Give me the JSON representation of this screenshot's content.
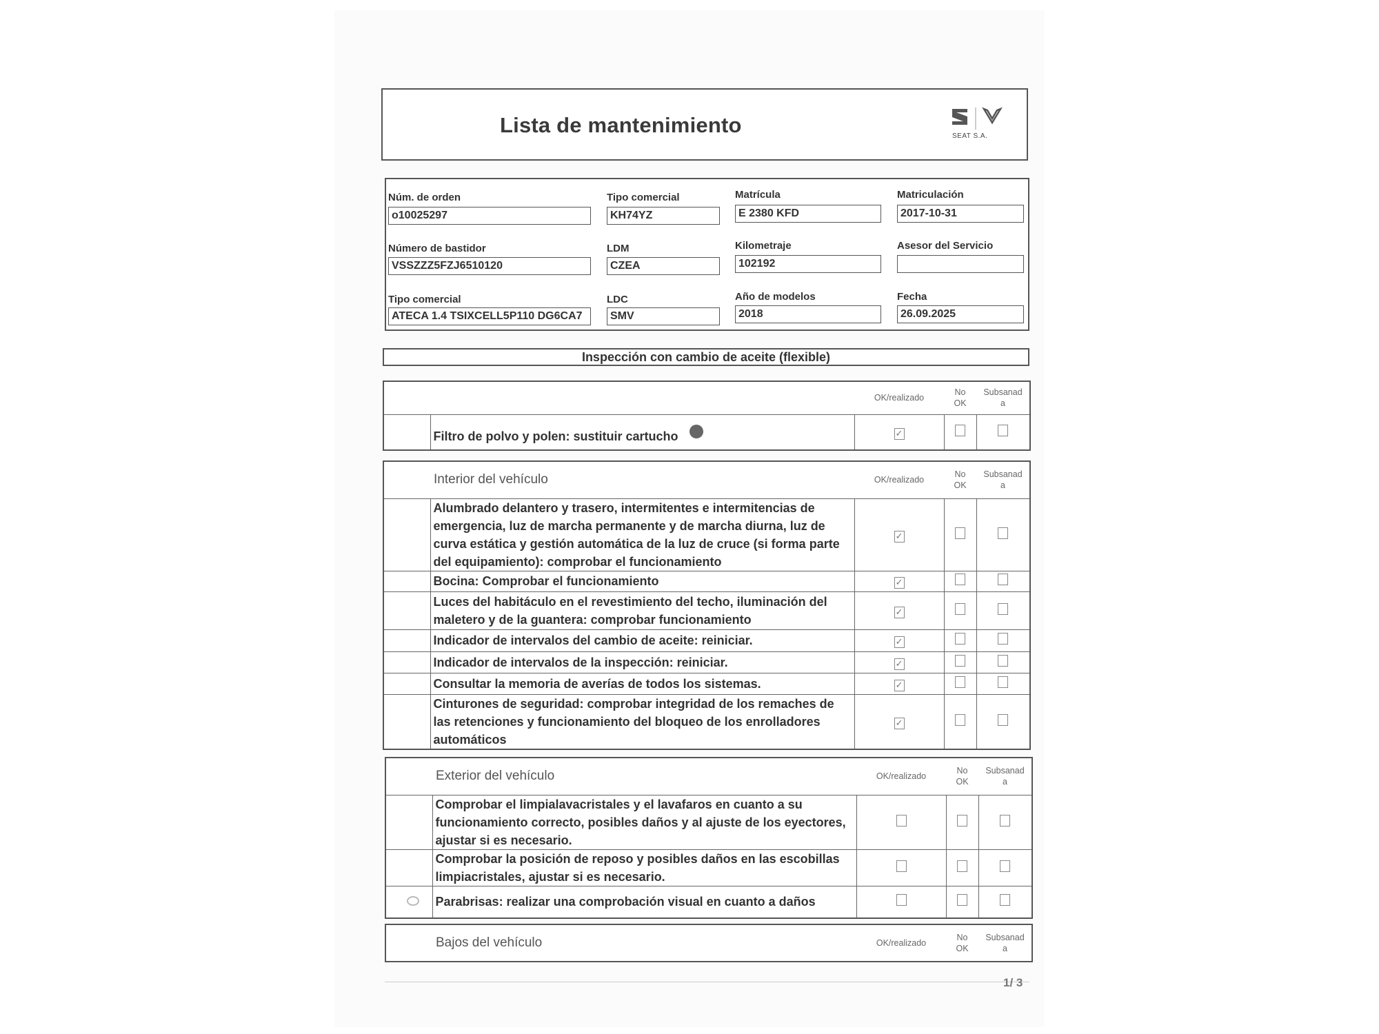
{
  "header": {
    "title": "Lista de mantenimiento",
    "brand": "SEAT S.A."
  },
  "info": [
    {
      "label": "Núm. de orden",
      "value": "o10025297"
    },
    {
      "label": "Tipo comercial",
      "value": "KH74YZ"
    },
    {
      "label": "Matrícula",
      "value": "E 2380 KFD"
    },
    {
      "label": "Matriculación",
      "value": "2017-10-31"
    },
    {
      "label": "Número de bastidor",
      "value": "VSSZZZ5FZJ6510120"
    },
    {
      "label": "LDM",
      "value": "CZEA"
    },
    {
      "label": "Kilometraje",
      "value": "102192"
    },
    {
      "label": "Asesor del Servicio",
      "value": ""
    },
    {
      "label": "Tipo comercial",
      "value": "ATECA 1.4 TSIXCELL5P110 DG6CA7"
    },
    {
      "label": "LDC",
      "value": "SMV"
    },
    {
      "label": "Año de modelos",
      "value": "2018"
    },
    {
      "label": "Fecha",
      "value": "26.09.2025"
    }
  ],
  "section_title": "Inspección con cambio de aceite (flexible)",
  "columns": {
    "ok": "OK/realizado",
    "no_ok_1": "No",
    "no_ok_2": "OK",
    "sub_1": "Subsanad",
    "sub_2": "a"
  },
  "check_mark": "✓",
  "groups": [
    {
      "title": "",
      "items": [
        {
          "text": "Filtro de polvo y polen: sustituir cartucho",
          "ok": true,
          "no_ok": false,
          "subsanada": false
        }
      ]
    },
    {
      "title": "Interior del vehículo",
      "items": [
        {
          "text": "Alumbrado delantero y trasero, intermitentes e intermitencias de emergencia, luz de marcha permanente y de marcha diurna, luz de curva estática y gestión automática de la luz de cruce (si forma parte del equipamiento): comprobar el funcionamiento",
          "ok": true,
          "no_ok": false,
          "subsanada": false
        },
        {
          "text": "Bocina: Comprobar el funcionamiento",
          "ok": true,
          "no_ok": false,
          "subsanada": false
        },
        {
          "text": "Luces del habitáculo en el revestimiento del techo, iluminación del maletero y de la guantera: comprobar funcionamiento",
          "ok": true,
          "no_ok": false,
          "subsanada": false
        },
        {
          "text": "Indicador de intervalos del cambio de aceite: reiniciar.",
          "ok": true,
          "no_ok": false,
          "subsanada": false
        },
        {
          "text": "Indicador de intervalos de la inspección: reiniciar.",
          "ok": true,
          "no_ok": false,
          "subsanada": false
        },
        {
          "text": "Consultar la memoria de averías de todos los sistemas.",
          "ok": true,
          "no_ok": false,
          "subsanada": false
        },
        {
          "text": "Cinturones de seguridad: comprobar integridad de los remaches de las retenciones y funcionamiento del bloqueo de los enrolladores automáticos",
          "ok": true,
          "no_ok": false,
          "subsanada": false
        }
      ]
    },
    {
      "title": "Exterior del vehículo",
      "items": [
        {
          "text": "Comprobar el limpialavacristales y el lavafaros en cuanto a su funcionamiento correcto, posibles daños y al ajuste de los eyectores, ajustar si es necesario.",
          "ok": false,
          "no_ok": false,
          "subsanada": false
        },
        {
          "text": "Comprobar la posición de reposo y posibles daños en las escobillas limpiacristales, ajustar si es necesario.",
          "ok": false,
          "no_ok": false,
          "subsanada": false
        },
        {
          "text": "Parabrisas: realizar una comprobación visual en cuanto a daños",
          "ok": false,
          "no_ok": false,
          "subsanada": false
        }
      ]
    },
    {
      "title": "Bajos del vehículo",
      "items": []
    }
  ],
  "footer": {
    "page": "1/ 3"
  }
}
